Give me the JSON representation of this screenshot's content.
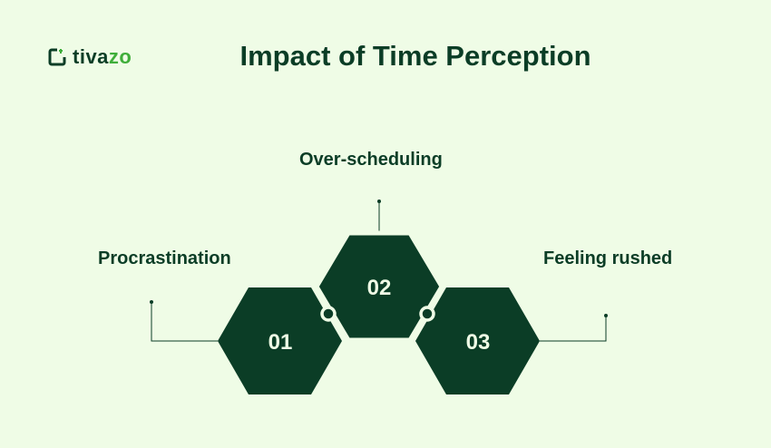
{
  "logo": {
    "text_main": "tiva",
    "text_accent": "zo"
  },
  "title": "Impact of Time Perception",
  "items": [
    {
      "number": "01",
      "label": "Procrastination"
    },
    {
      "number": "02",
      "label": "Over-scheduling"
    },
    {
      "number": "03",
      "label": "Feeling rushed"
    }
  ],
  "colors": {
    "background": "#effce6",
    "primary": "#0b3d26",
    "accent": "#3fae3a"
  }
}
